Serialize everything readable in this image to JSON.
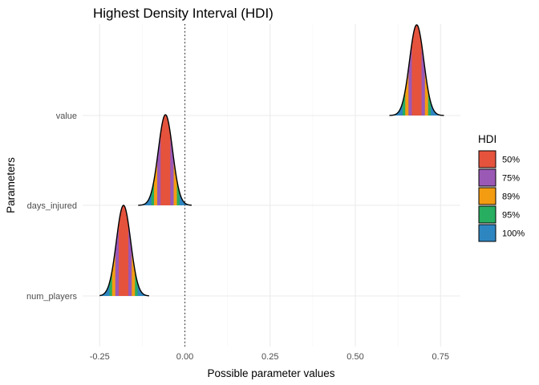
{
  "chart_data": {
    "type": "area",
    "title": "Highest Density Interval (HDI)",
    "xlabel": "Possible parameter values",
    "ylabel": "Parameters",
    "xlim": [
      -0.27,
      0.81
    ],
    "x_ticks": [
      -0.25,
      0.0,
      0.25,
      0.5,
      0.75
    ],
    "x_tick_labels": [
      "-0.25",
      "0.00",
      "0.25",
      "0.50",
      "0.75"
    ],
    "reference_line": {
      "x": 0,
      "style": "dotted"
    },
    "grid": true,
    "legend": {
      "title": "HDI",
      "position": "right",
      "entries": [
        {
          "label": "50%",
          "color": "#E5533D"
        },
        {
          "label": "75%",
          "color": "#9B59B6"
        },
        {
          "label": "89%",
          "color": "#F39C12"
        },
        {
          "label": "95%",
          "color": "#27AE60"
        },
        {
          "label": "100%",
          "color": "#2E86C1"
        }
      ]
    },
    "series": [
      {
        "name": "value",
        "mean": 0.68,
        "sd": 0.021,
        "min": 0.6,
        "max": 0.76
      },
      {
        "name": "days_injured",
        "mean": -0.057,
        "sd": 0.021,
        "min": -0.137,
        "max": 0.02
      },
      {
        "name": "num_players",
        "mean": -0.18,
        "sd": 0.021,
        "min": -0.25,
        "max": -0.105
      }
    ]
  }
}
